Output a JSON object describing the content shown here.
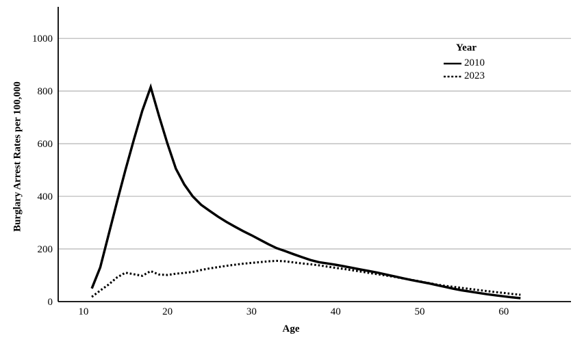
{
  "chart_data": {
    "type": "line",
    "title": "",
    "xlabel": "Age",
    "ylabel": "Burglary Arrest Rates per 100,000",
    "legend_title": "Year",
    "legend_position": "upper right",
    "grid": "horizontal",
    "x_ticks": [
      10,
      20,
      30,
      40,
      50,
      60
    ],
    "y_ticks": [
      0,
      200,
      400,
      600,
      800,
      1000
    ],
    "xlim": [
      7,
      68
    ],
    "ylim": [
      0,
      1120
    ],
    "x": [
      11,
      12,
      13,
      14,
      15,
      16,
      17,
      18,
      19,
      20,
      21,
      22,
      23,
      24,
      25,
      26,
      27,
      28,
      29,
      30,
      31,
      32,
      33,
      34,
      35,
      36,
      37,
      38,
      39,
      40,
      41,
      42,
      43,
      44,
      45,
      46,
      47,
      48,
      49,
      50,
      51,
      52,
      53,
      54,
      55,
      56,
      57,
      58,
      59,
      60,
      61,
      62
    ],
    "series": [
      {
        "name": "2010",
        "style": "solid",
        "values": [
          50,
          130,
          255,
          380,
          500,
          615,
          725,
          815,
          705,
          600,
          505,
          445,
          400,
          368,
          345,
          323,
          303,
          285,
          268,
          252,
          235,
          218,
          203,
          192,
          180,
          169,
          158,
          150,
          145,
          140,
          134,
          128,
          122,
          116,
          110,
          103,
          96,
          89,
          82,
          76,
          70,
          63,
          56,
          49,
          43,
          38,
          33,
          28,
          24,
          20,
          16,
          13
        ]
      },
      {
        "name": "2023",
        "style": "dotted",
        "values": [
          18,
          42,
          65,
          92,
          110,
          104,
          98,
          116,
          103,
          101,
          106,
          109,
          113,
          120,
          126,
          131,
          136,
          140,
          144,
          147,
          150,
          153,
          155,
          153,
          149,
          145,
          142,
          138,
          133,
          128,
          124,
          119,
          114,
          109,
          104,
          99,
          94,
          88,
          83,
          77,
          71,
          65,
          60,
          56,
          52,
          48,
          44,
          40,
          36,
          33,
          29,
          26
        ]
      }
    ]
  },
  "colors": {
    "line": "#000000",
    "grid": "#b3b3b3",
    "axis": "#000000",
    "background": "#ffffff"
  }
}
